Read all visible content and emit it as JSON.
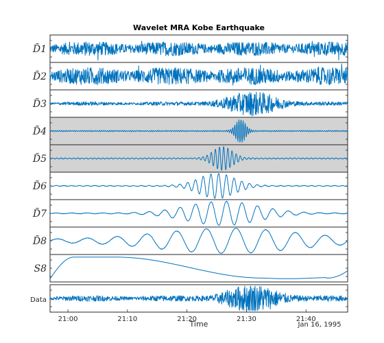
{
  "chart_data": {
    "type": "line",
    "title": "Wavelet MRA Kobe Earthquake",
    "xlabel": "Time",
    "x_date_label": "Jan 16, 1995",
    "xlim": [
      "20:57",
      "21:47"
    ],
    "x_ticks": [
      "21:00",
      "21:10",
      "21:20",
      "21:30",
      "21:40"
    ],
    "line_color": "#0072BD",
    "shaded_color": "#d3d3d3",
    "grid": false,
    "panels": [
      {
        "label": "D̃1",
        "shaded": false,
        "style": "noise",
        "base_amp": 0.45,
        "burst_at": null,
        "burst_amp": 0.0
      },
      {
        "label": "D̃2",
        "shaded": false,
        "style": "noise",
        "base_amp": 0.55,
        "burst_at": null,
        "burst_amp": 0.0
      },
      {
        "label": "D̃3",
        "shaded": false,
        "style": "noise",
        "base_amp": 0.12,
        "burst_at": "21:31",
        "burst_amp": 0.85
      },
      {
        "label": "D̃4",
        "shaded": true,
        "style": "wave",
        "period_min": 0.35,
        "base_amp": 0.04,
        "burst_at": "21:29",
        "burst_amp": 0.95
      },
      {
        "label": "D̃5",
        "shaded": true,
        "style": "wave",
        "period_min": 0.7,
        "base_amp": 0.04,
        "burst_at": "21:26",
        "burst_amp": 0.95
      },
      {
        "label": "D̃6",
        "shaded": false,
        "style": "wave",
        "period_min": 1.3,
        "base_amp": 0.03,
        "burst_at": "21:25",
        "burst_amp": 1.0
      },
      {
        "label": "D̃7",
        "shaded": false,
        "style": "wave",
        "period_min": 2.6,
        "base_amp": 0.03,
        "burst_at": "21:26",
        "burst_amp": 0.95
      },
      {
        "label": "D̃8",
        "shaded": false,
        "style": "wave",
        "period_min": 5.0,
        "base_amp": 0.12,
        "burst_at": "21:27",
        "burst_amp": 0.9
      },
      {
        "label": "S8",
        "shaded": false,
        "style": "smooth"
      },
      {
        "label": "Data",
        "shaded": false,
        "style": "data",
        "base_amp": 0.18,
        "burst_at": "21:31",
        "burst_amp": 0.95
      }
    ]
  }
}
